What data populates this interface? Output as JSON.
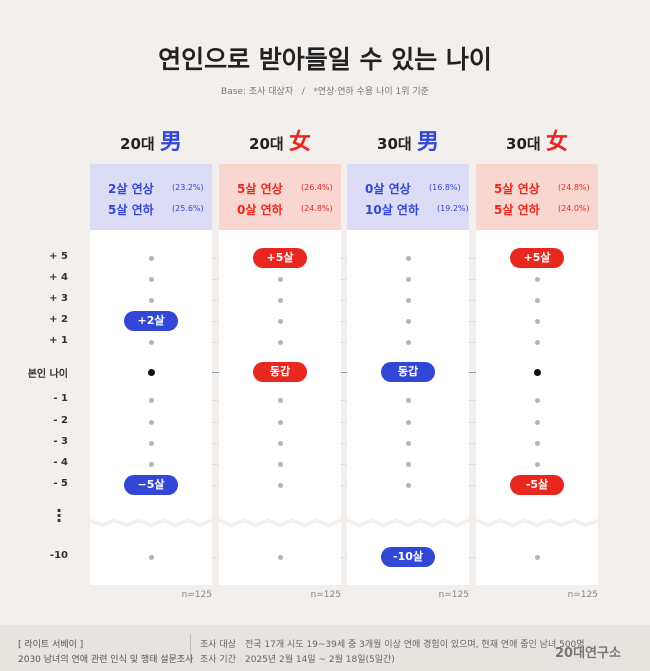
{
  "title": "연인으로 받아들일 수 있는 나이",
  "subtitle": "Base: 조사 대상자   /   *연상·연하 수용 나이 1위 기준",
  "rows": [
    "+ 5",
    "+ 4",
    "+ 3",
    "+ 2",
    "+ 1",
    "본인 나이",
    "- 1",
    "- 2",
    "- 3",
    "- 4",
    "- 5",
    "-10"
  ],
  "columns": [
    {
      "age": "20대",
      "gender": "男",
      "color": "#3347d6",
      "tint": "#dcdcf7",
      "lines": [
        [
          "2살 연상",
          "(23.2%)"
        ],
        [
          "5살 연하",
          "(25.6%)"
        ]
      ],
      "cells": [
        null,
        null,
        null,
        "+2살",
        null,
        null,
        null,
        null,
        null,
        null,
        "−5살",
        null
      ],
      "n": "n=125"
    },
    {
      "age": "20대",
      "gender": "女",
      "color": "#e8281e",
      "tint": "#fad6d0",
      "lines": [
        [
          "5살 연상",
          "(26.4%)"
        ],
        [
          "0살 연하",
          "(24.8%)"
        ]
      ],
      "cells": [
        "+5살",
        null,
        null,
        null,
        null,
        "동갑",
        null,
        null,
        null,
        null,
        null,
        null
      ],
      "n": "n=125"
    },
    {
      "age": "30대",
      "gender": "男",
      "color": "#3347d6",
      "tint": "#dcdcf7",
      "lines": [
        [
          "0살 연상",
          "(16.8%)"
        ],
        [
          "10살 연하",
          "(19.2%)"
        ]
      ],
      "cells": [
        null,
        null,
        null,
        null,
        null,
        "동갑",
        null,
        null,
        null,
        null,
        null,
        "-10살"
      ],
      "n": "n=125"
    },
    {
      "age": "30대",
      "gender": "女",
      "color": "#e8281e",
      "tint": "#fad6d0",
      "lines": [
        [
          "5살 연상",
          "(24.8%)"
        ],
        [
          "5살 연하",
          "(24.0%)"
        ]
      ],
      "cells": [
        "+5살",
        null,
        null,
        null,
        null,
        null,
        null,
        null,
        null,
        null,
        "-5살",
        null
      ],
      "n": "n=125"
    }
  ],
  "footer": {
    "series": "[ 라이트 서베이 ]",
    "survey": "2030 남녀의 연애 관련 인식 및 행태 설문조사",
    "target_label": "조사 대상",
    "target": "전국 17개 시도 19~39세 중 3개월 이상 연애 경험이 있으며, 현재 연애 중인 남녀 500명",
    "period_label": "조사 기간",
    "period": "2025년 2월 14일 ~ 2월 18일(5일간)",
    "logo": "20대연구소"
  }
}
